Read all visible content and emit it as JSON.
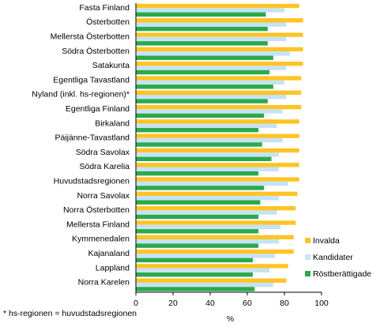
{
  "chart_data": {
    "type": "bar",
    "orientation": "horizontal",
    "title": "",
    "xlabel": "%",
    "ylabel": "",
    "xlim": [
      0,
      100
    ],
    "x_ticks": [
      0,
      20,
      40,
      60,
      80,
      100
    ],
    "grid": false,
    "legend_position": "right",
    "categories": [
      "Fasta Finland",
      "Österbotten",
      "Mellersta Österbotten",
      "Södra Österbotten",
      "Satakunta",
      "Egentliga Tavastland",
      "Nyland (inkl. hs-regionen)*",
      "Egentliga Finland",
      "Birkaland",
      "Päijänne-Tavastland",
      "Södra Savolax",
      "Södra Karelia",
      "Huvudstadsregionen",
      "Norra Savolax",
      "Norra Österbotten",
      "Mellersta Finland",
      "Kymmenedalen",
      "Kajanaland",
      "Lappland",
      "Norra Karelen"
    ],
    "series": [
      {
        "name": "Invalda",
        "color": "#FFC425",
        "values": [
          88,
          90,
          90,
          90,
          90,
          89,
          89,
          89,
          88,
          88,
          88,
          88,
          88,
          87,
          86,
          86,
          85,
          85,
          82,
          81
        ]
      },
      {
        "name": "Kandidater",
        "color": "#C5E3F7",
        "values": [
          80,
          81,
          81,
          83,
          81,
          80,
          81,
          79,
          76,
          79,
          77,
          77,
          82,
          77,
          76,
          78,
          77,
          75,
          72,
          74
        ]
      },
      {
        "name": "Röstberättigade",
        "color": "#2AAA4A",
        "values": [
          70,
          71,
          71,
          74,
          72,
          74,
          71,
          69,
          66,
          68,
          73,
          66,
          69,
          67,
          66,
          66,
          66,
          63,
          63,
          64
        ]
      }
    ]
  },
  "footnote": "* hs-regionen = huvudstadsregionen"
}
